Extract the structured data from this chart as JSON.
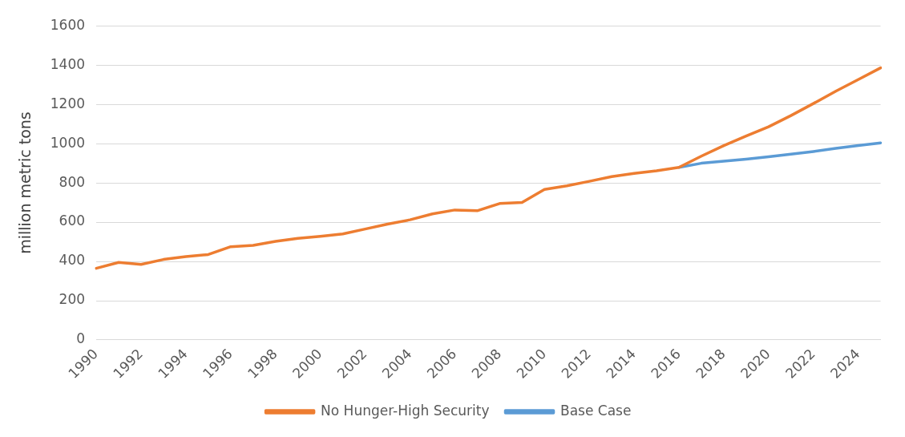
{
  "chart_data": {
    "type": "line",
    "ylabel": "million metric tons",
    "categories": [
      "1990",
      null,
      "1992",
      null,
      "1994",
      null,
      "1996",
      null,
      "1998",
      null,
      "2000",
      null,
      "2002",
      null,
      "2004",
      null,
      "2006",
      null,
      "2008",
      null,
      "2010",
      null,
      "2012",
      null,
      "2014",
      null,
      "2016",
      null,
      "2018",
      null,
      "2020",
      null,
      "2022",
      null,
      "2024",
      null
    ],
    "series": [
      {
        "name": "Base Case",
        "color": "#5b9bd5",
        "values": [
          null,
          null,
          null,
          null,
          null,
          null,
          null,
          null,
          null,
          null,
          null,
          null,
          null,
          null,
          null,
          null,
          null,
          null,
          null,
          null,
          null,
          null,
          null,
          null,
          null,
          null,
          879,
          900,
          911,
          921,
          933,
          946,
          960,
          976,
          990,
          1004
        ]
      },
      {
        "name": "No Hunger-High Security",
        "color": "#ed7d31",
        "values": [
          365,
          395,
          385,
          410,
          425,
          435,
          475,
          482,
          502,
          518,
          528,
          540,
          565,
          590,
          612,
          642,
          662,
          658,
          695,
          700,
          767,
          785,
          808,
          832,
          848,
          862,
          879,
          936,
          990,
          1039,
          1086,
          1143,
          1204,
          1267,
          1326,
          1386
        ]
      }
    ],
    "ylim": [
      0,
      1600
    ],
    "yticks": [
      0,
      200,
      400,
      600,
      800,
      1000,
      1200,
      1400,
      1600
    ],
    "grid": "y",
    "legend": "bottom",
    "marker": "none",
    "line_style": "solid"
  }
}
